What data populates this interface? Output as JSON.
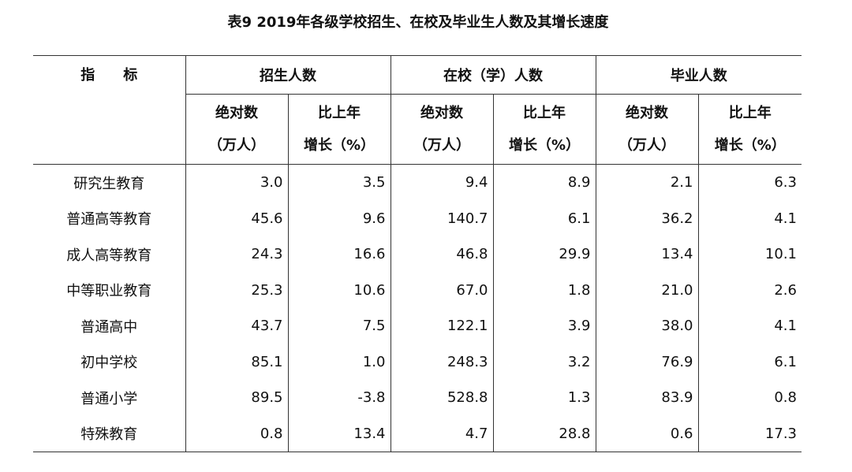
{
  "title": "表9 2019年各级学校招生、在校及毕业生人数及其增长速度",
  "table": {
    "corner": "指　　标",
    "groups": [
      "招生人数",
      "在校（学）人数",
      "毕业人数"
    ],
    "subheaders": [
      [
        "绝对数",
        "（万人）"
      ],
      [
        "比上年",
        "增长（%）"
      ],
      [
        "绝对数",
        "（万人）"
      ],
      [
        "比上年",
        "增长（%）"
      ],
      [
        "绝对数",
        "（万人）"
      ],
      [
        "比上年",
        "增长（%）"
      ]
    ],
    "rows": [
      [
        "研究生教育",
        "3.0",
        "3.5",
        "9.4",
        "8.9",
        "2.1",
        "6.3"
      ],
      [
        "普通高等教育",
        "45.6",
        "9.6",
        "140.7",
        "6.1",
        "36.2",
        "4.1"
      ],
      [
        "成人高等教育",
        "24.3",
        "16.6",
        "46.8",
        "29.9",
        "13.4",
        "10.1"
      ],
      [
        "中等职业教育",
        "25.3",
        "10.6",
        "67.0",
        "1.8",
        "21.0",
        "2.6"
      ],
      [
        "普通高中",
        "43.7",
        "7.5",
        "122.1",
        "3.9",
        "38.0",
        "4.1"
      ],
      [
        "初中学校",
        "85.1",
        "1.0",
        "248.3",
        "3.2",
        "76.9",
        "6.1"
      ],
      [
        "普通小学",
        "89.5",
        "-3.8",
        "528.8",
        "1.3",
        "83.9",
        "0.8"
      ],
      [
        "特殊教育",
        "0.8",
        "13.4",
        "4.7",
        "28.8",
        "0.6",
        "17.3"
      ]
    ]
  }
}
